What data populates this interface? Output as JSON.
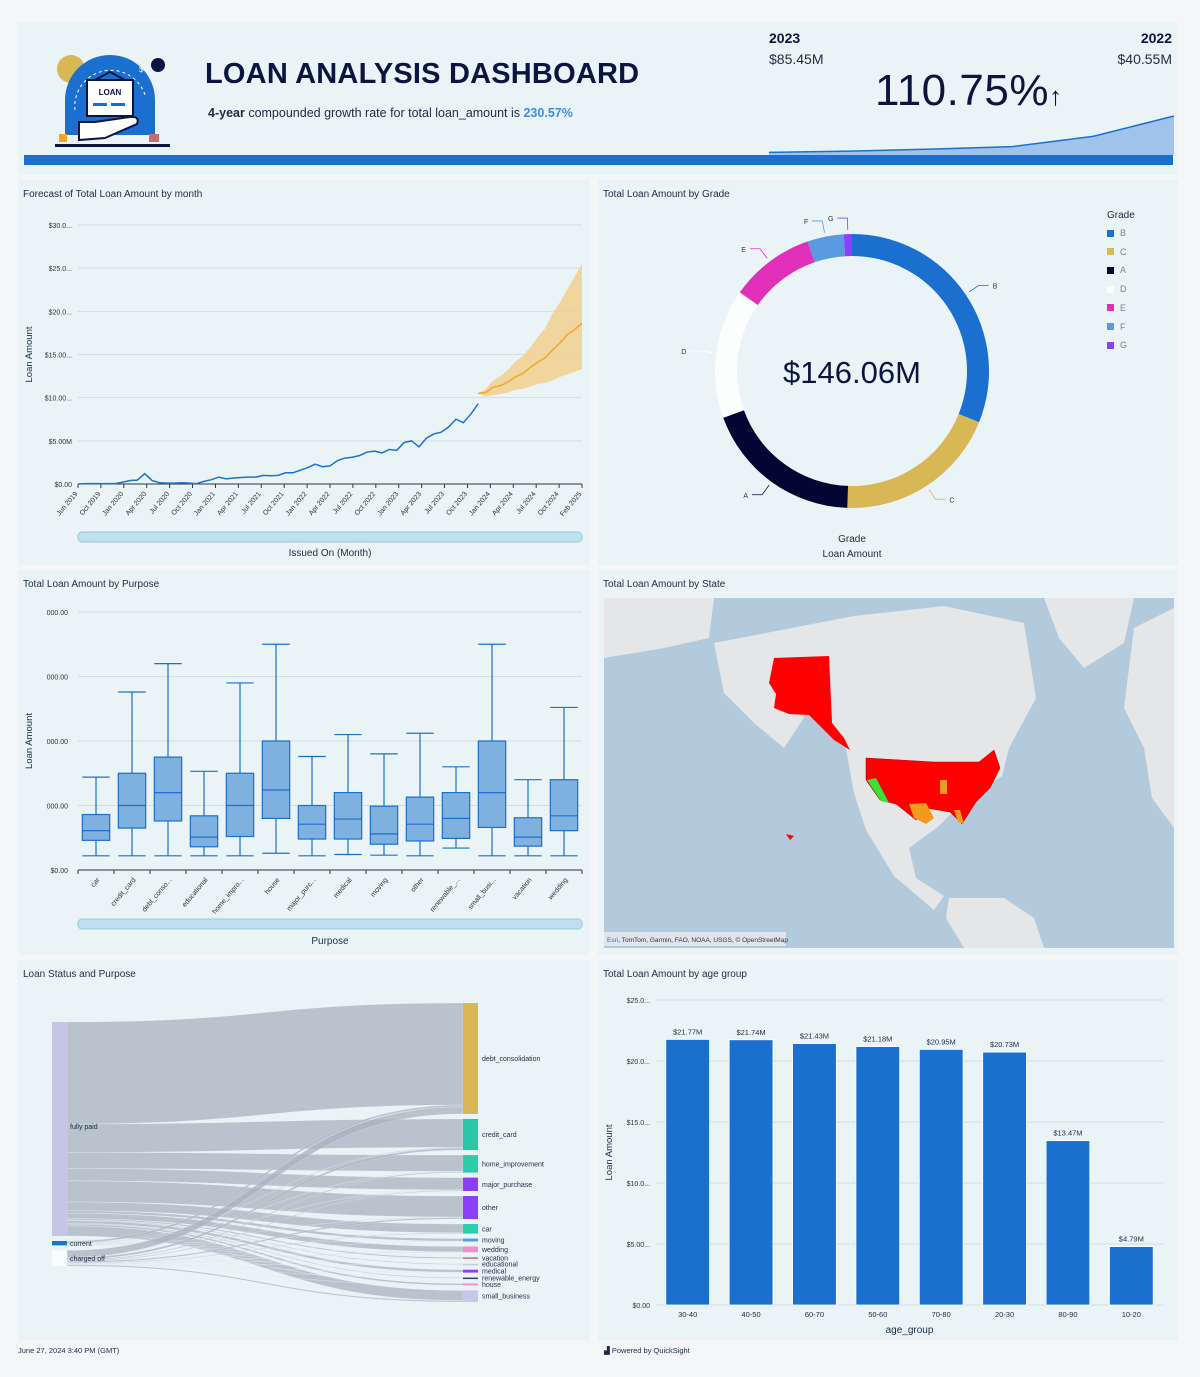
{
  "header": {
    "title": "LOAN ANALYSIS DASHBOARD",
    "subtitle_bold": "4-year",
    "subtitle_text": " compounded growth rate for total loan_amount is ",
    "subtitle_value": "230.57%",
    "logo_text": "LOAN",
    "kpi": {
      "current_label": "2023",
      "current_value": "$85.45M",
      "prior_label": "2022",
      "prior_value": "$40.55M",
      "change": "110.75%",
      "trend_icon": "arrow-up-icon",
      "sparkline": [
        0.5,
        1.5,
        3,
        5,
        13,
        29
      ]
    }
  },
  "colors": {
    "accent": "#1a6fcf",
    "panel": "#eaf4f7",
    "forecast": "#f5a623"
  },
  "chart_data": [
    {
      "type": "line",
      "title": "Forecast of Total Loan Amount by month",
      "xlabel": "Issued On (Month)",
      "ylabel": "Loan Amount",
      "ylim": [
        0,
        30
      ],
      "yunit": "$M",
      "ytick_labels": [
        "$0.00",
        "$5.00M",
        "$10.00...",
        "$15.00...",
        "$20.0...",
        "$25.0...",
        "$30.0..."
      ],
      "xtick_labels": [
        "Jun 2019",
        "Oct 2019",
        "Jan 2020",
        "Apr 2020",
        "Jul 2020",
        "Oct 2020",
        "Jan 2021",
        "Apr 2021",
        "Jul 2021",
        "Oct 2021",
        "Jan 2022",
        "Apr 2022",
        "Jul 2022",
        "Oct 2022",
        "Jan 2023",
        "Apr 2023",
        "Jul 2023",
        "Oct 2023",
        "Jan 2024",
        "Apr 2024",
        "Jul 2024",
        "Oct 2024",
        "Feb 2025"
      ],
      "grid": true,
      "series": [
        {
          "kind": "actual",
          "color": "#1a73d0",
          "x": [
            "2019-06",
            "2019-07",
            "2019-08",
            "2019-09",
            "2019-10",
            "2019-11",
            "2019-12",
            "2020-01",
            "2020-02",
            "2020-03",
            "2020-04",
            "2020-05",
            "2020-06",
            "2020-07",
            "2020-08",
            "2020-09",
            "2020-10",
            "2020-11",
            "2020-12",
            "2021-01",
            "2021-02",
            "2021-03",
            "2021-04",
            "2021-05",
            "2021-06",
            "2021-07",
            "2021-08",
            "2021-09",
            "2021-10",
            "2021-11",
            "2021-12",
            "2022-01",
            "2022-02",
            "2022-03",
            "2022-04",
            "2022-05",
            "2022-06",
            "2022-07",
            "2022-08",
            "2022-09",
            "2022-10",
            "2022-11",
            "2022-12",
            "2023-01",
            "2023-02",
            "2023-03",
            "2023-04",
            "2023-05",
            "2023-06",
            "2023-07",
            "2023-08",
            "2023-09",
            "2023-10",
            "2023-11",
            "2023-12"
          ],
          "y": [
            0,
            0.05,
            0.05,
            0.05,
            0.05,
            0.05,
            0.2,
            0.4,
            0.45,
            1.2,
            0.4,
            0.15,
            0.1,
            0.1,
            0.15,
            0.1,
            0.05,
            0.3,
            0.5,
            0.8,
            0.6,
            0.7,
            0.75,
            0.8,
            0.8,
            1.0,
            0.95,
            1.0,
            1.3,
            1.3,
            1.6,
            1.9,
            2.3,
            2.0,
            2.1,
            2.7,
            3.0,
            3.1,
            3.3,
            3.7,
            3.8,
            3.6,
            4.0,
            3.9,
            4.8,
            5.0,
            4.3,
            5.3,
            5.8,
            6.0,
            6.6,
            7.5,
            7.1,
            8.1,
            9.3
          ]
        },
        {
          "kind": "forecast",
          "color": "#f5a623",
          "x": [
            "2023-12",
            "2024-01",
            "2024-02",
            "2024-03",
            "2024-04",
            "2024-05",
            "2024-06",
            "2024-07",
            "2024-08",
            "2024-09",
            "2024-10",
            "2024-11",
            "2024-12",
            "2025-01",
            "2025-02"
          ],
          "y": [
            10.5,
            10.6,
            11.2,
            11.4,
            11.8,
            12.4,
            12.8,
            13.5,
            14.1,
            14.6,
            15.5,
            16.3,
            17.3,
            17.9,
            18.6
          ],
          "lower": [
            10.5,
            10.1,
            10.3,
            10.4,
            10.6,
            10.9,
            11.0,
            11.3,
            11.6,
            11.7,
            12.0,
            12.4,
            12.7,
            13.0,
            13.3
          ],
          "upper": [
            10.5,
            11.0,
            12.0,
            12.5,
            13.2,
            14.2,
            14.8,
            15.8,
            17.0,
            18.0,
            19.7,
            21.0,
            22.5,
            24.0,
            25.5
          ]
        }
      ]
    },
    {
      "type": "pie",
      "title": "Total Loan Amount by Grade",
      "center_label": "$146.06M",
      "xlabel": "Grade",
      "ylabel": "Loan Amount",
      "legend_title": "Grade",
      "legend_position": "right",
      "slices": [
        {
          "label": "B",
          "value": 45.4,
          "color": "#1a6fcf"
        },
        {
          "label": "C",
          "value": 28.4,
          "color": "#d8b755"
        },
        {
          "label": "A",
          "value": 27.6,
          "color": "#030633"
        },
        {
          "label": "D",
          "value": 22.3,
          "color": "#fbfefd"
        },
        {
          "label": "E",
          "value": 14.6,
          "color": "#e02fb8"
        },
        {
          "label": "F",
          "value": 6.3,
          "color": "#5b9ae0"
        },
        {
          "label": "G",
          "value": 1.4,
          "color": "#8a3ffc"
        }
      ]
    },
    {
      "type": "box",
      "title": "Total Loan Amount by Purpose",
      "xlabel": "Purpose",
      "ylabel": "Loan Amount",
      "ylim": [
        0,
        40000
      ],
      "ytick_labels": [
        "$0.00",
        "000.00",
        "000.00",
        "000.00",
        "000.00"
      ],
      "categories": [
        "car",
        "credit_card",
        "debt_conso...",
        "educational",
        "home_impro...",
        "house",
        "major_purc...",
        "medical",
        "moving",
        "other",
        "renewable_...",
        "small_busi...",
        "vacation",
        "wedding"
      ],
      "boxes": [
        [
          2200,
          4600,
          6100,
          8600,
          14400
        ],
        [
          2200,
          6500,
          10000,
          15000,
          27600
        ],
        [
          2200,
          7600,
          12000,
          17500,
          32000
        ],
        [
          2200,
          3600,
          5100,
          8400,
          15300
        ],
        [
          2200,
          5200,
          10000,
          15000,
          29000
        ],
        [
          2600,
          8000,
          12400,
          20000,
          35000
        ],
        [
          2200,
          4800,
          7100,
          10000,
          17600
        ],
        [
          2400,
          4800,
          7900,
          12000,
          21000
        ],
        [
          2300,
          4000,
          5600,
          9900,
          18000
        ],
        [
          2200,
          4500,
          7100,
          11300,
          21200
        ],
        [
          3400,
          4900,
          8000,
          12000,
          16000
        ],
        [
          2200,
          6600,
          12000,
          20000,
          35000
        ],
        [
          2200,
          3700,
          5100,
          8100,
          14000
        ],
        [
          2200,
          6100,
          8400,
          14000,
          25200
        ]
      ]
    },
    {
      "type": "map",
      "title": "Total Loan Amount by State",
      "attribution_link": "Esri",
      "attribution": ", TomTom, Garmin, FAO, NOAA, USGS, © OpenStreetMap"
    },
    {
      "type": "sankey",
      "title": "Loan Status and Purpose",
      "sources": [
        {
          "label": "fully paid",
          "color": "#c5c5e6"
        },
        {
          "label": "current",
          "color": "#1a73d0"
        },
        {
          "label": "charged off",
          "color": "#f7fdfb"
        }
      ],
      "targets": [
        {
          "label": "debt_consolidation",
          "color": "#d8b755",
          "flows": [
            63.0,
            1.2,
            4.3
          ]
        },
        {
          "label": "credit_card",
          "color": "#2bc5a8",
          "flows": [
            17.5,
            0.4,
            1.3
          ]
        },
        {
          "label": "home_improvement",
          "color": "#2ccdaa",
          "flows": [
            10.0,
            0.2,
            0.6
          ]
        },
        {
          "label": "major_purchase",
          "color": "#8a3ffc",
          "flows": [
            7.6,
            0.2,
            0.5
          ]
        },
        {
          "label": "other",
          "color": "#8a3ffc",
          "flows": [
            13.0,
            0.3,
            0.9
          ]
        },
        {
          "label": "car",
          "color": "#2ccdaa",
          "flows": [
            5.4,
            0.1,
            0.4
          ]
        },
        {
          "label": "moving",
          "color": "#5b9ae0",
          "flows": [
            1.6,
            0.05,
            0.15
          ]
        },
        {
          "label": "wedding",
          "color": "#ee8fcf",
          "flows": [
            3.3,
            0.05,
            0.25
          ]
        },
        {
          "label": "vacation",
          "color": "#c0706e",
          "flows": [
            0.8,
            0.02,
            0.08
          ]
        },
        {
          "label": "educational",
          "color": "#c6c8ea",
          "flows": [
            0.5,
            0.01,
            0.05
          ]
        },
        {
          "label": "medical",
          "color": "#8a3ffc",
          "flows": [
            1.6,
            0.03,
            0.15
          ]
        },
        {
          "label": "renewable_energy",
          "color": "#333d5a",
          "flows": [
            0.5,
            0.01,
            0.05
          ]
        },
        {
          "label": "house",
          "color": "#ee8fcf",
          "flows": [
            1.1,
            0.02,
            0.1
          ]
        },
        {
          "label": "small_business",
          "color": "#c6c8ea",
          "flows": [
            6.2,
            0.1,
            0.8
          ]
        }
      ]
    },
    {
      "type": "bar",
      "title": "Total Loan Amount by age group",
      "xlabel": "age_group",
      "ylabel": "Loan Amount",
      "ylim": [
        0,
        25
      ],
      "yunit": "$M",
      "ytick_labels": [
        "$0.00",
        "$5.00...",
        "$10.0...",
        "$15.0...",
        "$20.0...",
        "$25.0..."
      ],
      "categories": [
        "30-40",
        "40-50",
        "60-70",
        "50-60",
        "70-80",
        "20-30",
        "80-90",
        "10-20"
      ],
      "values": [
        21.77,
        21.74,
        21.43,
        21.18,
        20.95,
        20.73,
        13.47,
        4.79
      ],
      "data_labels": [
        "$21.77M",
        "$21.74M",
        "$21.43M",
        "$21.18M",
        "$20.95M",
        "$20.73M",
        "$13.47M",
        "$4.79M"
      ],
      "color": "#1a6fcf",
      "grid": true
    }
  ],
  "footer": {
    "date": "June 27, 2024 3:40 PM (GMT)",
    "powered": "Powered by QuickSight"
  }
}
